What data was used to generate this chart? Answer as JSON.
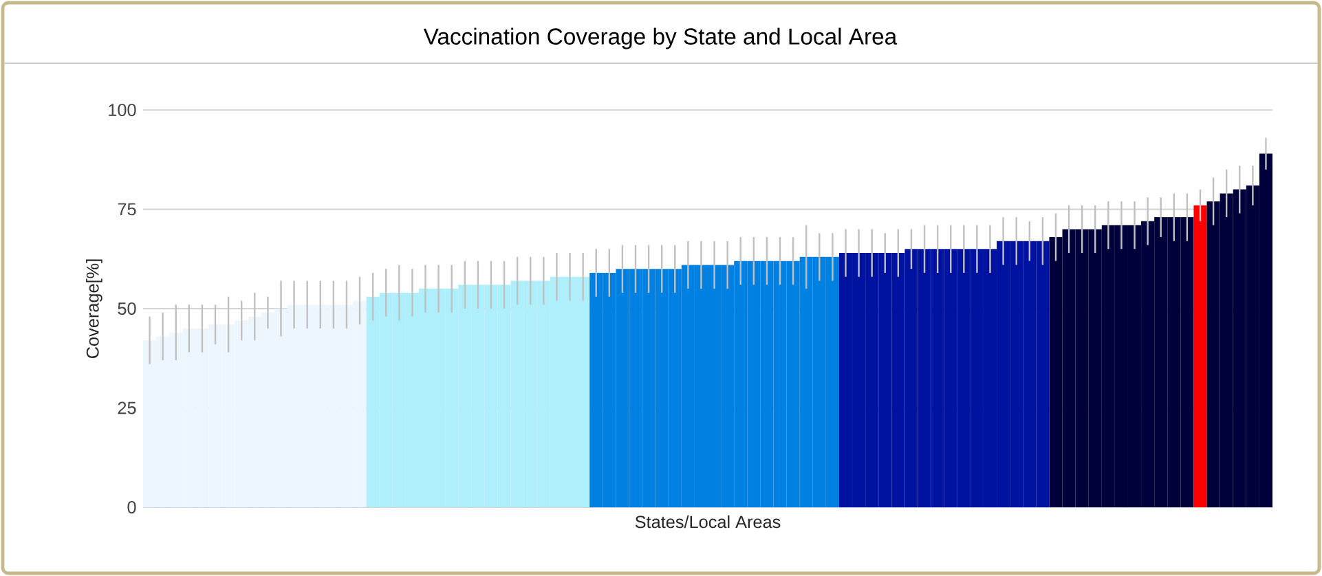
{
  "chart_data": {
    "type": "bar",
    "title": "Vaccination Coverage by State and Local Area",
    "xlabel": "States/Local Areas",
    "ylabel": "Coverage[%]",
    "categories": [
      null,
      null,
      null,
      null,
      null,
      null,
      null,
      null,
      null,
      null,
      null,
      null,
      null,
      null,
      null,
      null,
      null,
      null,
      null,
      null,
      null,
      null,
      null,
      null,
      null,
      null,
      null,
      null,
      null,
      null,
      null,
      null,
      null,
      null,
      null,
      null,
      null,
      null,
      null,
      null,
      null,
      null,
      null,
      null,
      null,
      null,
      null,
      null,
      null,
      null,
      null,
      null,
      null,
      null,
      null,
      null,
      null,
      null,
      null,
      null,
      null,
      null,
      null,
      null,
      null,
      null,
      null,
      null,
      null,
      null,
      null,
      null,
      null,
      null,
      null,
      null,
      null,
      null,
      null,
      null,
      null,
      null,
      null,
      null,
      null,
      null
    ],
    "values": [
      42,
      43,
      44,
      45,
      45,
      46,
      46,
      47,
      48,
      49,
      50,
      51,
      51,
      51,
      51,
      51,
      52,
      53,
      54,
      54,
      54,
      55,
      55,
      55,
      56,
      56,
      56,
      56,
      57,
      57,
      57,
      58,
      58,
      58,
      59,
      59,
      60,
      60,
      60,
      60,
      60,
      61,
      61,
      61,
      61,
      62,
      62,
      62,
      62,
      62,
      63,
      63,
      63,
      64,
      64,
      64,
      64,
      64,
      65,
      65,
      65,
      65,
      65,
      65,
      65,
      67,
      67,
      67,
      67,
      68,
      70,
      70,
      70,
      71,
      71,
      71,
      72,
      73,
      73,
      73,
      76,
      77,
      79,
      80,
      81,
      89
    ],
    "errors": [
      6,
      6,
      7,
      6,
      6,
      5,
      7,
      5,
      6,
      4,
      7,
      6,
      6,
      6,
      6,
      6,
      6,
      6,
      6,
      7,
      6,
      6,
      6,
      6,
      6,
      6,
      6,
      6,
      6,
      6,
      6,
      6,
      6,
      6,
      6,
      6,
      6,
      6,
      6,
      6,
      6,
      6,
      6,
      6,
      6,
      6,
      6,
      6,
      6,
      6,
      8,
      6,
      6,
      6,
      6,
      6,
      5,
      6,
      5,
      6,
      6,
      6,
      6,
      6,
      6,
      6,
      6,
      5,
      6,
      6,
      6,
      6,
      6,
      6,
      6,
      6,
      6,
      5,
      6,
      6,
      4,
      6,
      6,
      6,
      5,
      4
    ],
    "colors": [
      "#eef6fd",
      "#eef6fd",
      "#eef6fd",
      "#eef6fd",
      "#eef6fd",
      "#eef6fd",
      "#eef6fd",
      "#eef6fd",
      "#eef6fd",
      "#eef6fd",
      "#eef6fd",
      "#eef6fd",
      "#eef6fd",
      "#eef6fd",
      "#eef6fd",
      "#eef6fd",
      "#eef6fd",
      "#aeeffb",
      "#aeeffb",
      "#aeeffb",
      "#aeeffb",
      "#aeeffb",
      "#aeeffb",
      "#aeeffb",
      "#aeeffb",
      "#aeeffb",
      "#aeeffb",
      "#aeeffb",
      "#aeeffb",
      "#aeeffb",
      "#aeeffb",
      "#aeeffb",
      "#aeeffb",
      "#aeeffb",
      "#0080e0",
      "#0080e0",
      "#0080e0",
      "#0080e0",
      "#0080e0",
      "#0080e0",
      "#0080e0",
      "#0080e0",
      "#0080e0",
      "#0080e0",
      "#0080e0",
      "#0080e0",
      "#0080e0",
      "#0080e0",
      "#0080e0",
      "#0080e0",
      "#0080e0",
      "#0080e0",
      "#0080e0",
      "#0012a0",
      "#0012a0",
      "#0012a0",
      "#0012a0",
      "#0012a0",
      "#0012a0",
      "#0012a0",
      "#0012a0",
      "#0012a0",
      "#0012a0",
      "#0012a0",
      "#0012a0",
      "#0012a0",
      "#0012a0",
      "#0012a0",
      "#0012a0",
      "#00003a",
      "#00003a",
      "#00003a",
      "#00003a",
      "#00003a",
      "#00003a",
      "#00003a",
      "#00003a",
      "#00003a",
      "#00003a",
      "#00003a",
      "#ff0000",
      "#00003a",
      "#00003a",
      "#00003a",
      "#00003a",
      "#00003a"
    ],
    "ylim": [
      0,
      100
    ],
    "yticks": [
      0,
      25,
      50,
      75,
      100
    ],
    "grid": "y"
  }
}
